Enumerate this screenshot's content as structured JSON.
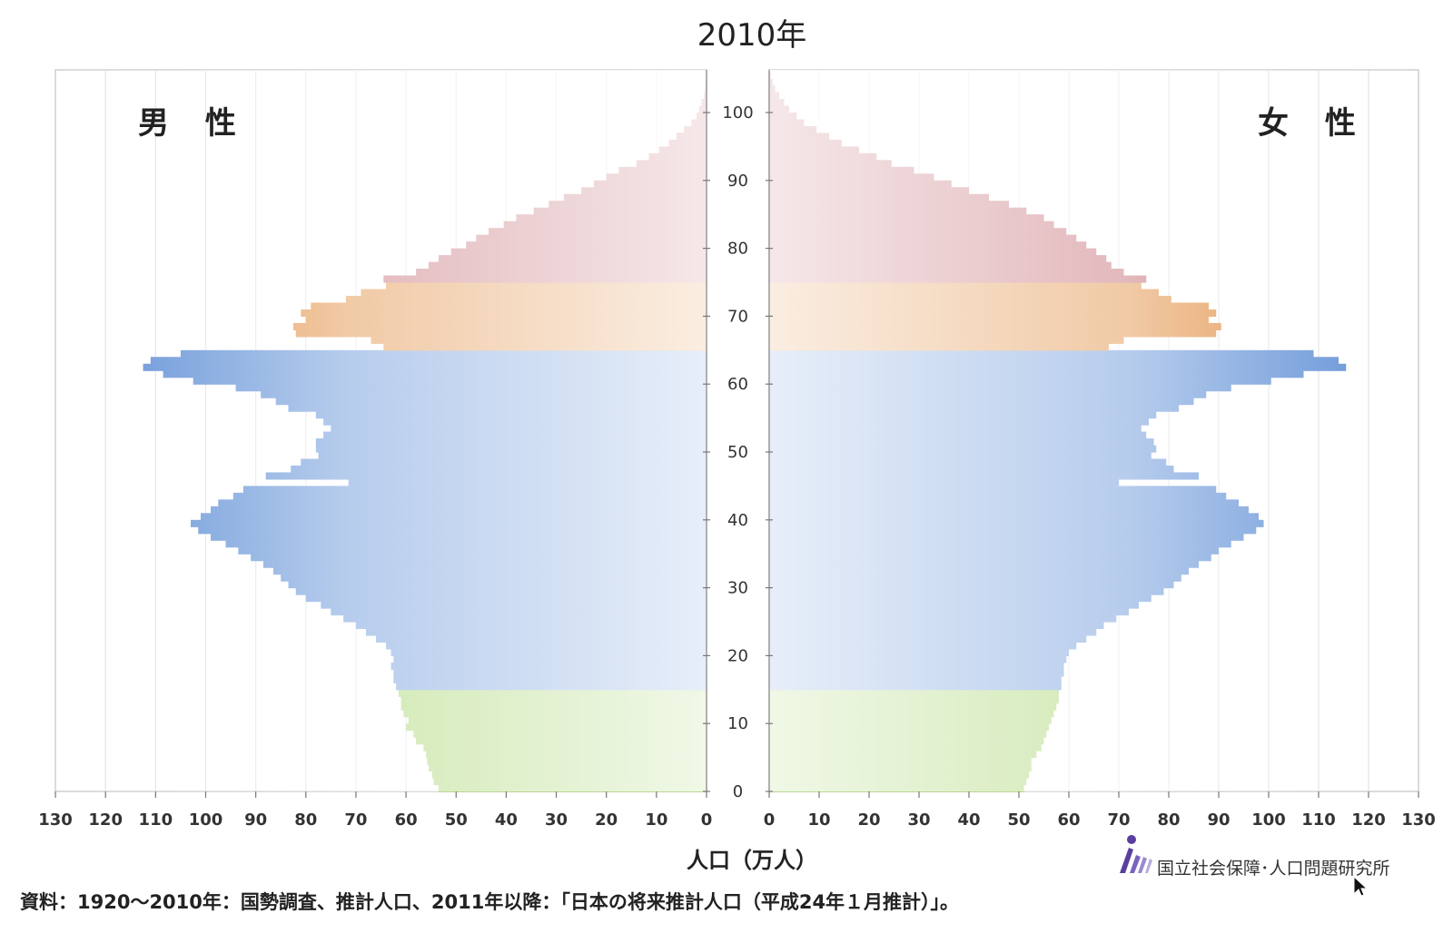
{
  "chart_data": {
    "type": "bar",
    "title": "2010年",
    "left_label": "男 性",
    "right_label": "女 性",
    "xlabel": "人口（万人）",
    "x_ticks": [
      130,
      120,
      110,
      100,
      90,
      80,
      70,
      60,
      50,
      40,
      30,
      20,
      10,
      0
    ],
    "xlim": [
      0,
      130
    ],
    "age_ticks": [
      0,
      10,
      20,
      30,
      40,
      50,
      60,
      70,
      80,
      90,
      100
    ],
    "age_range": [
      0,
      105
    ],
    "age_groups": [
      {
        "name": "0-14",
        "from": 0,
        "to": 14,
        "color": "#9ccf5c"
      },
      {
        "name": "15-64",
        "from": 15,
        "to": 64,
        "color": "#5f8fd6"
      },
      {
        "name": "65-74",
        "from": 65,
        "to": 74,
        "color": "#e08a3a"
      },
      {
        "name": "75+",
        "from": 75,
        "to": 105,
        "color": "#c0636b"
      }
    ],
    "series": [
      {
        "name": "男 性",
        "side": "left",
        "values": [
          53.5,
          54.5,
          54.8,
          55.5,
          55.8,
          56.0,
          56.5,
          58.0,
          58.5,
          60.0,
          59.5,
          60.5,
          61.0,
          61.0,
          61.5,
          62.0,
          62.5,
          62.5,
          63.0,
          62.5,
          63.0,
          64.0,
          66.0,
          68.0,
          70.0,
          72.5,
          75.0,
          77.0,
          80.0,
          82.0,
          83.5,
          85.0,
          86.5,
          88.5,
          91.0,
          93.5,
          96.0,
          99.0,
          101.5,
          103.0,
          101.0,
          99.0,
          97.5,
          94.5,
          92.5,
          71.5,
          88.0,
          83.0,
          81.0,
          77.5,
          78.0,
          78.0,
          76.5,
          75.0,
          76.5,
          78.0,
          83.5,
          86.0,
          89.0,
          94.0,
          102.5,
          108.5,
          112.5,
          111.0,
          105.0,
          64.5,
          67.0,
          82.0,
          82.5,
          80.0,
          81.0,
          79.0,
          72.0,
          69.0,
          64.0,
          64.5,
          58.0,
          55.5,
          53.5,
          51.0,
          48.0,
          46.0,
          43.5,
          40.5,
          38.0,
          34.5,
          31.5,
          28.5,
          25.0,
          22.5,
          20.0,
          17.5,
          14.0,
          11.5,
          9.5,
          7.5,
          6.0,
          4.5,
          3.0,
          2.0,
          1.5,
          1.0,
          0.5,
          0.3,
          0.2,
          0.1
        ]
      },
      {
        "name": "女 性",
        "side": "right",
        "values": [
          51.0,
          51.5,
          52.0,
          52.5,
          52.5,
          53.5,
          54.5,
          55.0,
          55.5,
          56.0,
          56.5,
          57.0,
          57.5,
          58.0,
          58.0,
          58.5,
          58.5,
          59.0,
          59.0,
          59.5,
          60.0,
          61.5,
          63.5,
          65.5,
          67.0,
          69.5,
          72.0,
          74.0,
          76.5,
          79.0,
          81.0,
          82.5,
          84.0,
          86.0,
          88.5,
          90.0,
          92.5,
          95.0,
          97.5,
          99.0,
          98.0,
          96.0,
          94.0,
          91.5,
          89.5,
          70.0,
          86.0,
          81.0,
          79.5,
          76.5,
          77.5,
          77.0,
          75.5,
          74.5,
          76.0,
          77.5,
          82.0,
          85.0,
          87.5,
          92.5,
          100.5,
          107.0,
          115.5,
          114.0,
          109.0,
          68.0,
          71.0,
          89.5,
          90.5,
          88.0,
          89.5,
          88.0,
          80.5,
          78.0,
          74.5,
          75.5,
          71.0,
          68.5,
          67.5,
          65.5,
          63.5,
          61.5,
          59.5,
          57.0,
          55.0,
          51.5,
          48.0,
          44.0,
          40.0,
          36.5,
          33.0,
          29.0,
          24.5,
          21.5,
          18.0,
          14.5,
          12.0,
          9.5,
          7.0,
          5.5,
          4.0,
          3.0,
          2.0,
          1.2,
          0.7,
          0.3
        ]
      }
    ]
  },
  "source_text": "資料：1920～2010年：国勢調査、推計人口、2011年以降：「日本の将来推計人口（平成24年１月推計）」。",
  "logo_text": "国立社会保障･人口問題研究所",
  "logo_icon": "ipss-logo-icon"
}
